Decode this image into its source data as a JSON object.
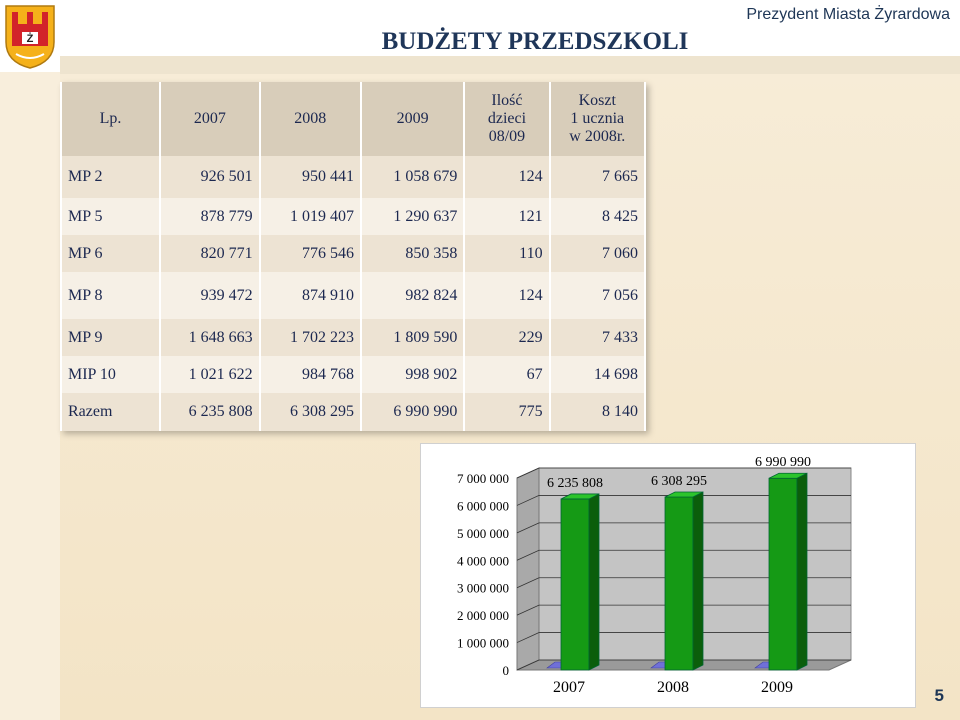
{
  "header": {
    "title": "BUDŻETY PRZEDSZKOLI",
    "president": "Prezydent Miasta Żyrardowa",
    "logo_letter": "Ż"
  },
  "table": {
    "headers": [
      "Lp.",
      "2007",
      "2008",
      "2009",
      "Ilość dzieci 08/09",
      "Koszt 1 ucznia w 2008r."
    ],
    "header_lines": {
      "children": [
        "Ilość",
        "dzieci",
        "08/09"
      ],
      "cost": [
        "Koszt",
        "1 ucznia",
        "w 2008r."
      ]
    },
    "rows": [
      [
        "MP 2",
        "926 501",
        "950 441",
        "1 058 679",
        "124",
        "7 665"
      ],
      [
        "MP 5",
        "878 779",
        "1 019 407",
        "1 290 637",
        "121",
        "8 425"
      ],
      [
        "MP 6",
        "820 771",
        "776 546",
        "850 358",
        "110",
        "7 060"
      ],
      [
        "MP 8",
        "939 472",
        "874 910",
        "982 824",
        "124",
        "7 056"
      ],
      [
        "MP 9",
        "1 648 663",
        "1 702 223",
        "1 809 590",
        "229",
        "7 433"
      ],
      [
        "MIP 10",
        "1 021 622",
        "984 768",
        "998 902",
        "67",
        "14 698"
      ],
      [
        "Razem",
        "6 235 808",
        "6 308 295",
        "6 990 990",
        "775",
        "8 140"
      ]
    ]
  },
  "chart_data": {
    "type": "bar",
    "categories": [
      "2007",
      "2008",
      "2009"
    ],
    "values": [
      6235808,
      6308295,
      6990990
    ],
    "data_labels": [
      "6 235 808",
      "6 308 295",
      "6 990 990"
    ],
    "y_ticks": [
      "0",
      "1 000 000",
      "2 000 000",
      "3 000 000",
      "4 000 000",
      "5 000 000",
      "6 000 000",
      "7 000 000"
    ],
    "ylim": [
      0,
      7000000
    ],
    "bar_color": "#159a15",
    "bar_dark": "#0b5e0b",
    "grid": true
  },
  "page_number": "5",
  "colors": {
    "title": "#1f3659",
    "table_text": "#1c2850",
    "logo_red": "#d2232a",
    "logo_gold": "#f5b11a"
  }
}
